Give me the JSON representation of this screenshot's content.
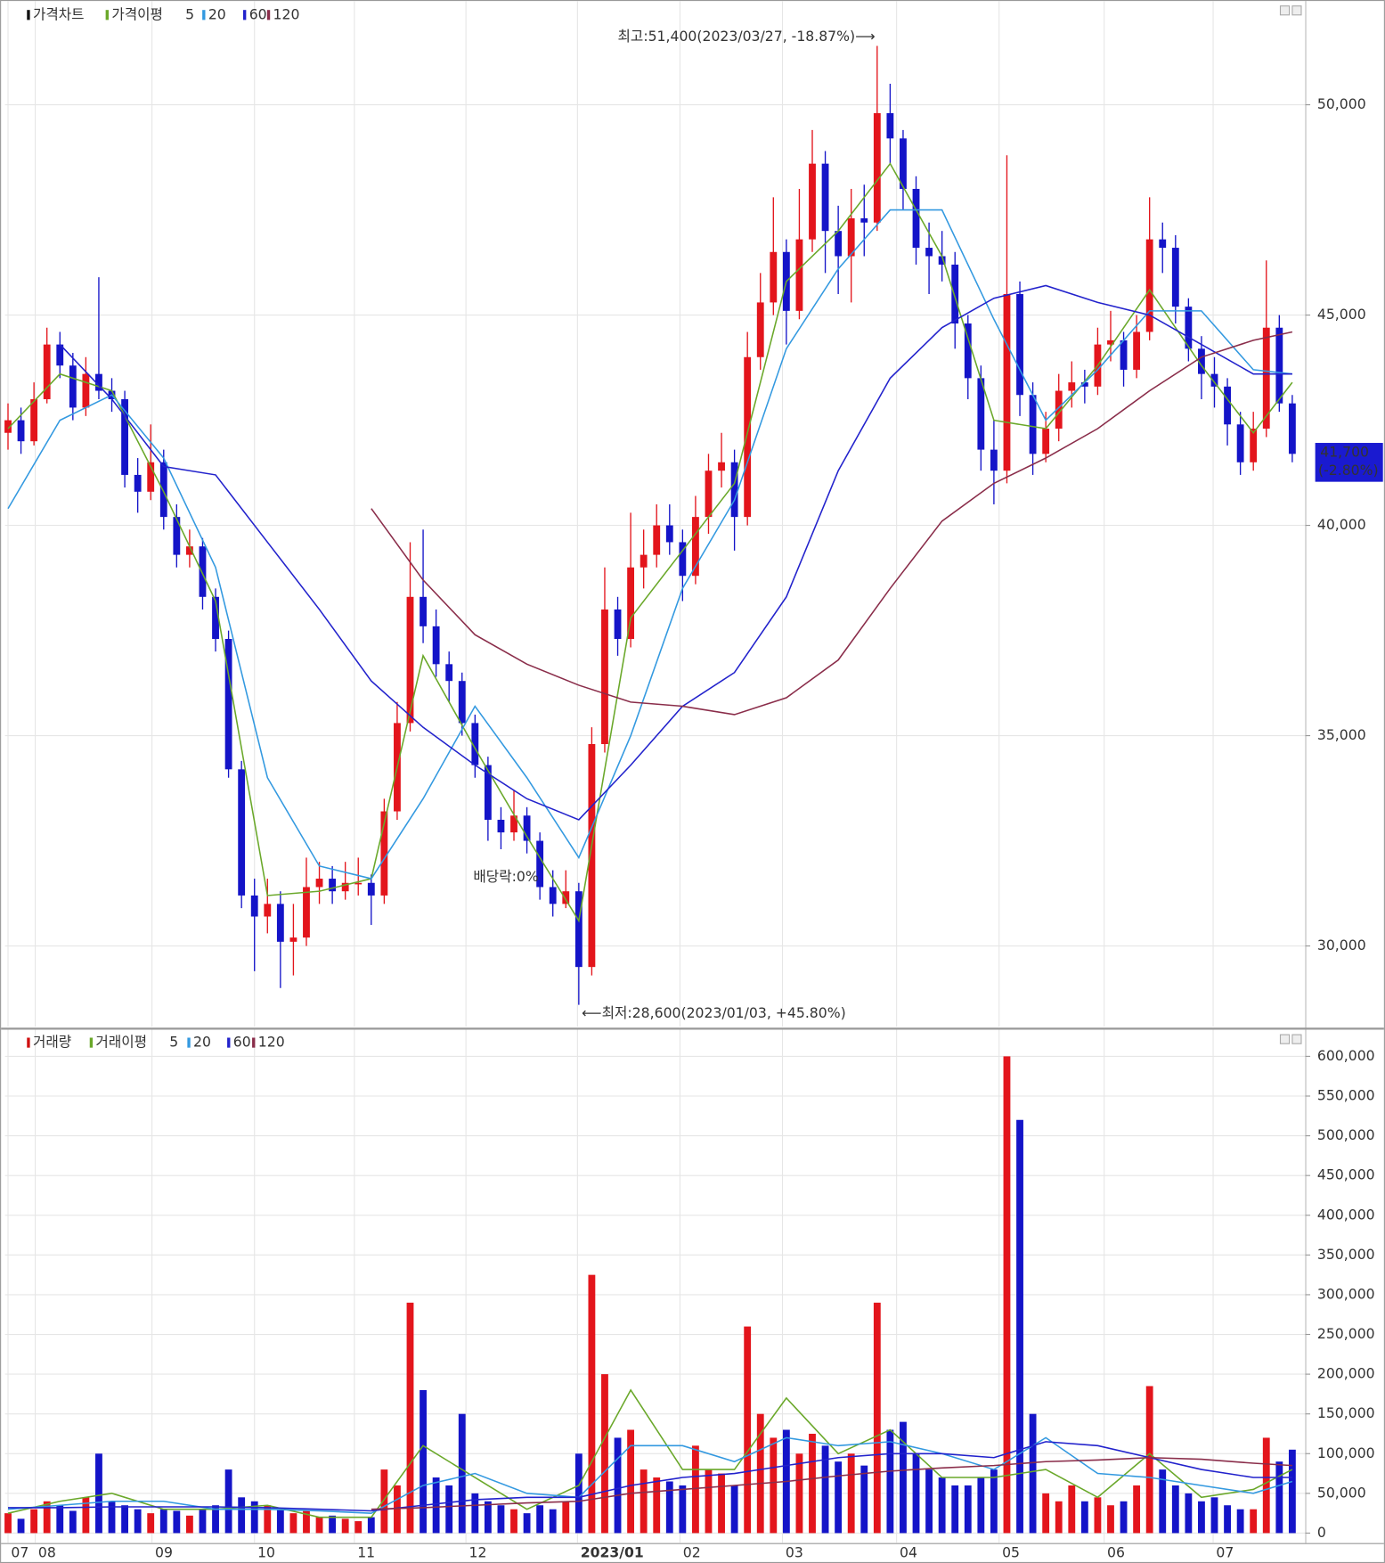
{
  "chart_data": [
    {
      "type": "candlestick",
      "legend_label": "가격차트",
      "ma_label": "가격이평",
      "high_note": "최고:51,400(2023/03/27, -18.87%)⟶",
      "low_note": "⟵최저:28,600(2023/01/03, +45.80%)",
      "dividend_note": "배당락:0%",
      "last_price": {
        "value": 41700,
        "label": "41,700"
      },
      "last_change": "(-2.80%)",
      "up_color": "#e3151c",
      "down_color": "#1414c8",
      "xlim": [
        -0.23,
        100
      ],
      "ylim": [
        28080,
        52420
      ],
      "yticks": [
        {
          "value": 30000,
          "label": "30,000"
        },
        {
          "value": 35000,
          "label": "35,000"
        },
        {
          "value": 40000,
          "label": "40,000"
        },
        {
          "value": 45000,
          "label": "45,000"
        },
        {
          "value": 50000,
          "label": "50,000"
        }
      ],
      "grid": true,
      "open": [
        42200,
        42500,
        42000,
        43000,
        44300,
        43800,
        42800,
        43600,
        43200,
        43000,
        41200,
        40800,
        41500,
        40200,
        39300,
        39500,
        38300,
        37300,
        34200,
        31200,
        30700,
        31000,
        30100,
        30200,
        31400,
        31600,
        31300,
        31500,
        31500,
        31200,
        33200,
        35300,
        38300,
        37600,
        36700,
        36300,
        35300,
        34300,
        33000,
        32700,
        33100,
        32500,
        31400,
        31000,
        31300,
        29500,
        34800,
        38000,
        37300,
        39000,
        39300,
        40000,
        39600,
        38800,
        40200,
        41300,
        41500,
        40200,
        44000,
        45300,
        46500,
        45100,
        46800,
        48600,
        47000,
        46400,
        47300,
        47200,
        49800,
        49200,
        48000,
        46600,
        46400,
        46200,
        44800,
        43500,
        41800,
        41300,
        45500,
        43100,
        41700,
        42300,
        43200,
        43400,
        43300,
        44300,
        44400,
        43700,
        44600,
        46800,
        46600,
        45200,
        44200,
        43600,
        43300,
        42400,
        41500,
        42300,
        44700,
        42900
      ],
      "high": [
        42900,
        42800,
        43400,
        44700,
        44600,
        44100,
        44000,
        45900,
        43500,
        43200,
        41600,
        42400,
        41800,
        40500,
        39900,
        39700,
        38500,
        37500,
        34400,
        31600,
        31600,
        31300,
        31000,
        32100,
        32000,
        31900,
        32000,
        32100,
        31700,
        33500,
        35800,
        39600,
        39900,
        38000,
        37000,
        36500,
        35500,
        34500,
        33300,
        33700,
        33300,
        32700,
        31800,
        31800,
        31500,
        35200,
        39000,
        38300,
        40300,
        39900,
        40500,
        40500,
        39900,
        40700,
        41700,
        42200,
        41800,
        44600,
        46000,
        47800,
        46800,
        48000,
        49400,
        48900,
        47600,
        48000,
        48100,
        51400,
        50500,
        49400,
        48300,
        47200,
        47000,
        46500,
        45000,
        43800,
        42500,
        48800,
        45800,
        43400,
        42700,
        43600,
        43900,
        43700,
        44700,
        45100,
        44600,
        45000,
        47800,
        47200,
        46900,
        45400,
        44500,
        44000,
        43500,
        42700,
        42700,
        46300,
        45000,
        43100
      ],
      "low": [
        41800,
        41700,
        41900,
        42900,
        43500,
        42500,
        42600,
        43000,
        42700,
        40900,
        40300,
        40600,
        39900,
        39000,
        39000,
        38000,
        37000,
        34000,
        30900,
        29400,
        30300,
        29000,
        29300,
        30000,
        31000,
        31000,
        31100,
        31200,
        30500,
        31000,
        33000,
        35100,
        37200,
        36400,
        35800,
        35000,
        34000,
        32500,
        32300,
        32500,
        32200,
        31100,
        30700,
        30900,
        28600,
        29300,
        34600,
        36900,
        37100,
        38500,
        39000,
        39300,
        38200,
        38600,
        39800,
        40900,
        39400,
        40000,
        43700,
        45000,
        44300,
        44900,
        46500,
        46000,
        45500,
        45300,
        46400,
        47000,
        48600,
        47500,
        46200,
        45500,
        45800,
        44200,
        43000,
        41300,
        40500,
        41000,
        42600,
        41200,
        41500,
        42000,
        42800,
        42900,
        43100,
        43900,
        43300,
        43500,
        44400,
        46000,
        44800,
        43900,
        43000,
        42800,
        41900,
        41200,
        41300,
        42100,
        42700,
        41500
      ],
      "close": [
        42500,
        42000,
        43000,
        44300,
        43800,
        42800,
        43600,
        43200,
        43000,
        41200,
        40800,
        41500,
        40200,
        39300,
        39500,
        38300,
        37300,
        34200,
        31200,
        30700,
        31000,
        30100,
        30200,
        31400,
        31600,
        31300,
        31500,
        31500,
        31200,
        33200,
        35300,
        38300,
        37600,
        36700,
        36300,
        35300,
        34300,
        33000,
        32700,
        33100,
        32500,
        31400,
        31000,
        31300,
        29500,
        34800,
        38000,
        37300,
        39000,
        39300,
        40000,
        39600,
        38800,
        40200,
        41300,
        41500,
        40200,
        44000,
        45300,
        46500,
        45100,
        46800,
        48600,
        47000,
        46400,
        47300,
        47200,
        49800,
        49200,
        48000,
        46600,
        46400,
        46200,
        44800,
        43500,
        41800,
        41300,
        45500,
        43100,
        41700,
        42300,
        43200,
        43400,
        43300,
        44300,
        44400,
        43700,
        44600,
        46800,
        46600,
        45200,
        44200,
        43600,
        43300,
        42400,
        41500,
        42300,
        44700,
        42900,
        41700
      ],
      "ma_x": [
        0,
        4,
        8,
        12,
        16,
        20,
        24,
        28,
        32,
        36,
        40,
        44,
        48,
        52,
        56,
        60,
        64,
        68,
        72,
        76,
        80,
        84,
        88,
        92,
        96,
        99
      ],
      "moving_averages": [
        {
          "name": "5",
          "color": "#6aa82a",
          "values": [
            42300,
            43600,
            43200,
            40800,
            38200,
            31200,
            31300,
            31600,
            36900,
            34700,
            32600,
            30600,
            37800,
            39400,
            41000,
            45800,
            47000,
            48600,
            46400,
            42500,
            42300,
            43800,
            45600,
            43800,
            42200,
            43400
          ]
        },
        {
          "name": "20",
          "color": "#3399e0",
          "values": [
            40400,
            42500,
            43100,
            41600,
            39000,
            34000,
            31900,
            31600,
            33500,
            35700,
            34000,
            32100,
            35000,
            38500,
            40600,
            44200,
            46100,
            47500,
            47500,
            44900,
            42500,
            43700,
            45100,
            45100,
            43700,
            43600
          ]
        },
        {
          "name": "60",
          "color": "#2222cc",
          "values": [
            null,
            44300,
            43000,
            41400,
            41200,
            39600,
            38000,
            36300,
            35200,
            34300,
            33500,
            33000,
            34300,
            35700,
            36500,
            38300,
            41300,
            43500,
            44700,
            45400,
            45700,
            45300,
            45000,
            44300,
            43600,
            43600
          ]
        },
        {
          "name": "120",
          "color": "#8a2d4a",
          "values": [
            null,
            null,
            null,
            null,
            null,
            null,
            null,
            40400,
            38700,
            37400,
            36700,
            36200,
            35800,
            35700,
            35500,
            35900,
            36800,
            38500,
            40100,
            41000,
            41600,
            42300,
            43200,
            44000,
            44400,
            44600
          ]
        }
      ]
    },
    {
      "type": "bar",
      "legend_label": "거래량",
      "ma_label": "거래이평",
      "xlim": [
        -0.23,
        100
      ],
      "ylim": [
        0,
        631000
      ],
      "yticks": [
        0,
        {
          "value": 50000,
          "label": "50,000"
        },
        {
          "value": 100000,
          "label": "100,000"
        },
        {
          "value": 150000,
          "label": "150,000"
        },
        {
          "value": 200000,
          "label": "200,000"
        },
        {
          "value": 250000,
          "label": "250,000"
        },
        {
          "value": 300000,
          "label": "300,000"
        },
        {
          "value": 350000,
          "label": "350,000"
        },
        {
          "value": 400000,
          "label": "400,000"
        },
        {
          "value": 450000,
          "label": "450,000"
        },
        {
          "value": 500000,
          "label": "500,000"
        },
        {
          "value": 550000,
          "label": "550,000"
        },
        {
          "value": 600000,
          "label": "600,000"
        }
      ],
      "xticks": [
        {
          "value": 0,
          "label": "07"
        },
        {
          "value": 2.1,
          "label": "08"
        },
        {
          "value": 11.1,
          "label": "09"
        },
        {
          "value": 19,
          "label": "10"
        },
        {
          "value": 26.7,
          "label": "11"
        },
        {
          "value": 35.3,
          "label": "12"
        },
        {
          "value": 43.9,
          "label": "2023/01"
        },
        {
          "value": 51.8,
          "label": "02"
        },
        {
          "value": 59.7,
          "label": "03"
        },
        {
          "value": 68.5,
          "label": "04"
        },
        {
          "value": 76.4,
          "label": "05"
        },
        {
          "value": 84.5,
          "label": "06"
        },
        {
          "value": 92.9,
          "label": "07"
        }
      ],
      "grid": true,
      "values": [
        25000,
        18000,
        30000,
        40000,
        35000,
        28000,
        45000,
        100000,
        40000,
        35000,
        30000,
        25000,
        30000,
        28000,
        22000,
        30000,
        35000,
        80000,
        45000,
        40000,
        35000,
        30000,
        25000,
        28000,
        20000,
        22000,
        18000,
        15000,
        20000,
        80000,
        60000,
        290000,
        180000,
        70000,
        60000,
        150000,
        50000,
        40000,
        35000,
        30000,
        25000,
        35000,
        30000,
        40000,
        100000,
        325000,
        200000,
        120000,
        130000,
        80000,
        70000,
        65000,
        60000,
        110000,
        80000,
        75000,
        60000,
        260000,
        150000,
        120000,
        130000,
        100000,
        125000,
        110000,
        90000,
        100000,
        85000,
        290000,
        130000,
        140000,
        100000,
        80000,
        70000,
        60000,
        60000,
        70000,
        80000,
        600000,
        520000,
        150000,
        50000,
        40000,
        60000,
        40000,
        45000,
        35000,
        40000,
        60000,
        185000,
        80000,
        60000,
        50000,
        40000,
        45000,
        35000,
        30000,
        30000,
        120000,
        90000,
        105000
      ],
      "ma_x": [
        0,
        4,
        8,
        12,
        16,
        20,
        24,
        28,
        32,
        36,
        40,
        44,
        48,
        52,
        56,
        60,
        64,
        68,
        72,
        76,
        80,
        84,
        88,
        92,
        96,
        99
      ],
      "moving_averages": [
        {
          "name": "5",
          "color": "#6aa82a",
          "values": [
            25000,
            40000,
            50000,
            30000,
            30000,
            35000,
            20000,
            20000,
            110000,
            70000,
            30000,
            60000,
            180000,
            80000,
            80000,
            170000,
            100000,
            130000,
            70000,
            70000,
            80000,
            45000,
            100000,
            45000,
            55000,
            80000
          ]
        },
        {
          "name": "20",
          "color": "#3399e0",
          "values": [
            30000,
            35000,
            40000,
            40000,
            30000,
            30000,
            28000,
            25000,
            60000,
            75000,
            50000,
            45000,
            110000,
            110000,
            90000,
            120000,
            110000,
            115000,
            100000,
            80000,
            120000,
            75000,
            70000,
            60000,
            50000,
            65000
          ]
        },
        {
          "name": "60",
          "color": "#2222cc",
          "values": [
            32000,
            32000,
            33000,
            33000,
            33000,
            32000,
            30000,
            28000,
            35000,
            42000,
            45000,
            45000,
            60000,
            70000,
            75000,
            85000,
            95000,
            100000,
            100000,
            95000,
            115000,
            110000,
            95000,
            80000,
            70000,
            70000
          ]
        },
        {
          "name": "120",
          "color": "#8a2d4a",
          "values": [
            null,
            null,
            null,
            null,
            null,
            null,
            null,
            30000,
            32000,
            35000,
            38000,
            40000,
            50000,
            55000,
            60000,
            65000,
            72000,
            78000,
            82000,
            85000,
            90000,
            92000,
            95000,
            93000,
            88000,
            85000
          ]
        }
      ]
    }
  ]
}
